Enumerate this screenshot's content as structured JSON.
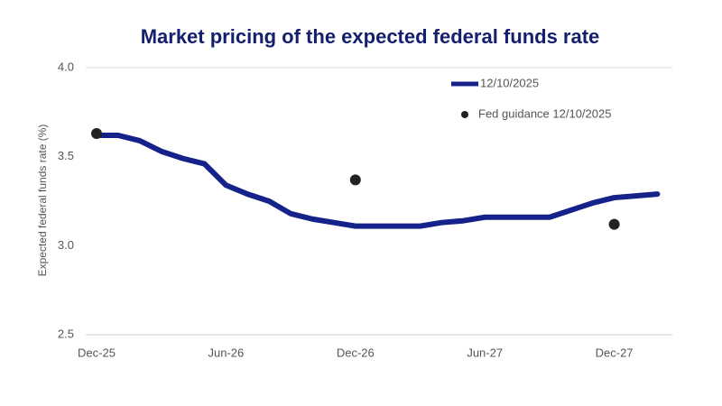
{
  "chart_data": {
    "type": "line",
    "title": "Market pricing of the expected federal funds rate",
    "y_label": "Expected federal funds rate (%)",
    "categories": [
      "Dec-25",
      null,
      null,
      null,
      null,
      null,
      "Jun-26",
      null,
      null,
      null,
      null,
      null,
      "Dec-26",
      null,
      null,
      null,
      null,
      null,
      "Jun-27",
      null,
      null,
      null,
      null,
      null,
      "Dec-27",
      null,
      null
    ],
    "series": [
      {
        "name": "12/10/2025",
        "color": "#14228a",
        "mode": "line",
        "values": [
          3.62,
          3.62,
          3.59,
          3.53,
          3.49,
          3.46,
          3.34,
          3.29,
          3.25,
          3.18,
          3.15,
          3.13,
          3.11,
          3.11,
          3.11,
          3.11,
          3.13,
          3.14,
          3.16,
          3.16,
          3.16,
          3.16,
          3.2,
          3.24,
          3.27,
          3.28,
          3.29
        ]
      },
      {
        "name": "Fed guidance 12/10/2025",
        "color": "#222222",
        "mode": "markers",
        "values": [
          3.63,
          null,
          null,
          null,
          null,
          null,
          null,
          null,
          null,
          null,
          null,
          null,
          3.37,
          null,
          null,
          null,
          null,
          null,
          null,
          null,
          null,
          null,
          null,
          null,
          3.12,
          null,
          null
        ]
      }
    ],
    "ylim": [
      2.5,
      4.0
    ],
    "yticks": [
      {
        "value": 2.5,
        "label": "2.5"
      },
      {
        "value": 3,
        "label": "3.0"
      },
      3.5,
      {
        "value": 4,
        "label": "4.0"
      }
    ],
    "grid": false,
    "legend": "top-right"
  }
}
